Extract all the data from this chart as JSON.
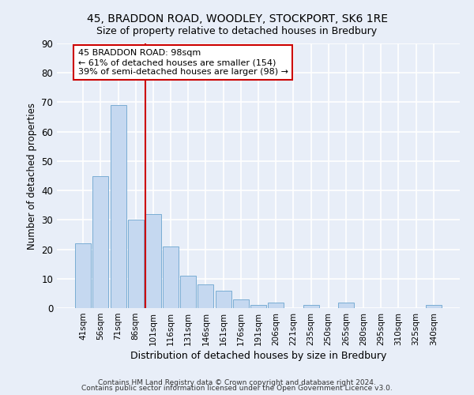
{
  "title_line1": "45, BRADDON ROAD, WOODLEY, STOCKPORT, SK6 1RE",
  "title_line2": "Size of property relative to detached houses in Bredbury",
  "xlabel": "Distribution of detached houses by size in Bredbury",
  "ylabel": "Number of detached properties",
  "categories": [
    "41sqm",
    "56sqm",
    "71sqm",
    "86sqm",
    "101sqm",
    "116sqm",
    "131sqm",
    "146sqm",
    "161sqm",
    "176sqm",
    "191sqm",
    "206sqm",
    "221sqm",
    "235sqm",
    "250sqm",
    "265sqm",
    "280sqm",
    "295sqm",
    "310sqm",
    "325sqm",
    "340sqm"
  ],
  "values": [
    22,
    45,
    69,
    30,
    32,
    21,
    11,
    8,
    6,
    3,
    1,
    2,
    0,
    1,
    0,
    2,
    0,
    0,
    0,
    0,
    1
  ],
  "bar_color": "#c5d8f0",
  "bar_edge_color": "#7aadd4",
  "vline_color": "#cc0000",
  "annotation_text": "45 BRADDON ROAD: 98sqm\n← 61% of detached houses are smaller (154)\n39% of semi-detached houses are larger (98) →",
  "annotation_box_facecolor": "#ffffff",
  "annotation_box_edgecolor": "#cc0000",
  "ylim": [
    0,
    90
  ],
  "yticks": [
    0,
    10,
    20,
    30,
    40,
    50,
    60,
    70,
    80,
    90
  ],
  "footer_line1": "Contains HM Land Registry data © Crown copyright and database right 2024.",
  "footer_line2": "Contains public sector information licensed under the Open Government Licence v3.0.",
  "bg_color": "#e8eef8",
  "grid_color": "#ffffff"
}
